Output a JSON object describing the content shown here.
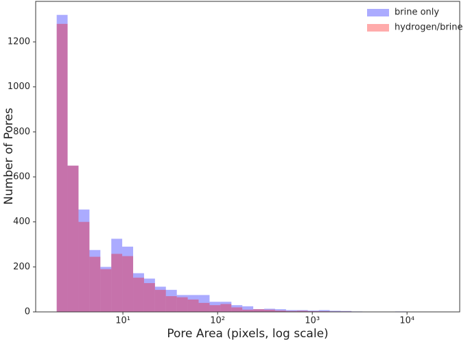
{
  "chart_data": {
    "type": "histogram",
    "xlabel": "Pore Area (pixels, log scale)",
    "ylabel": "Number of Pores",
    "xscale": "log",
    "bins": [
      2,
      2.608,
      3.401,
      4.436,
      5.785,
      7.545,
      9.835,
      12.83,
      16.73,
      21.82,
      28.44,
      37.1,
      48.37,
      63.08,
      82.27,
      107.3,
      139.9,
      182.4,
      237.9,
      310.2,
      404.6,
      527.7,
      688.1,
      897.4,
      1170,
      1526,
      1990,
      2595,
      3384,
      4413,
      5754,
      7504,
      9786,
      12760,
      16640,
      21700,
      28300
    ],
    "series": [
      {
        "name": "brine only",
        "color": "#0000ff",
        "values": [
          1320,
          650,
          455,
          275,
          200,
          325,
          290,
          172,
          148,
          112,
          98,
          75,
          75,
          75,
          45,
          45,
          30,
          25,
          12,
          14,
          12,
          8,
          8,
          6,
          8,
          5,
          4,
          2,
          1,
          0,
          1,
          2,
          0,
          1,
          0,
          1
        ]
      },
      {
        "name": "hydrogen/brine",
        "color": "#ff0000",
        "values": [
          1280,
          650,
          400,
          245,
          190,
          258,
          248,
          152,
          128,
          98,
          70,
          65,
          55,
          40,
          30,
          35,
          20,
          10,
          12,
          10,
          6,
          4,
          5,
          3,
          3,
          2,
          2,
          1,
          0,
          0,
          0,
          1,
          0,
          1,
          0,
          0
        ]
      }
    ],
    "alpha": 0.33,
    "xlim": [
      1.2,
      36000
    ],
    "ylim": [
      0,
      1380
    ],
    "xticks": [
      {
        "value": 10,
        "label": "10¹"
      },
      {
        "value": 100,
        "label": "10²"
      },
      {
        "value": 1000,
        "label": "10³"
      },
      {
        "value": 10000,
        "label": "10⁴"
      }
    ],
    "yticks": [
      0,
      200,
      400,
      600,
      800,
      1000,
      1200
    ],
    "legend": "upper right"
  }
}
